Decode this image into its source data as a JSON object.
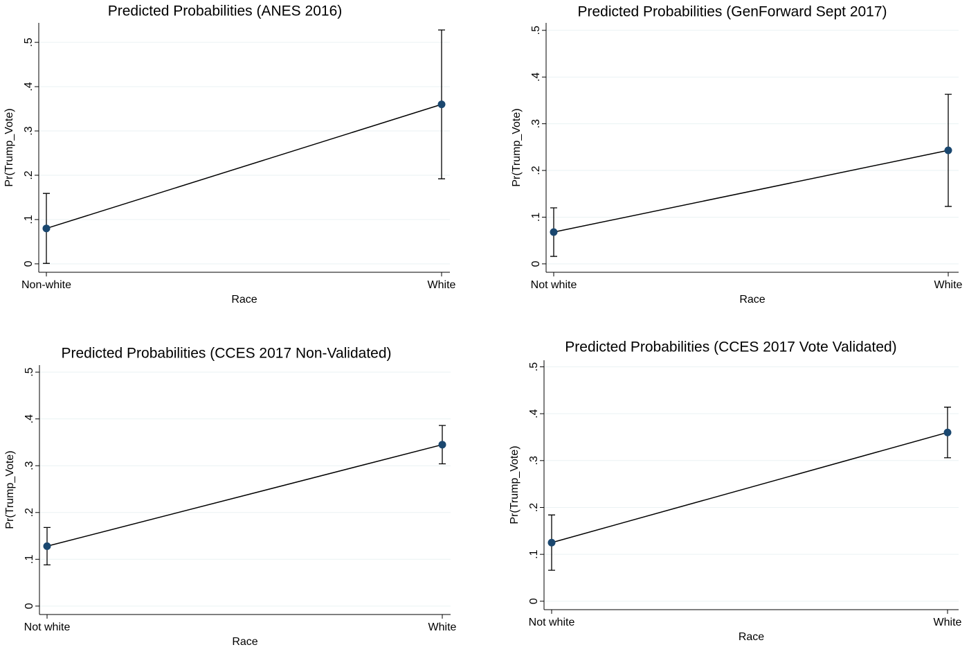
{
  "chart_data": [
    {
      "type": "line",
      "title": "Predicted Probabilities (ANES 2016)",
      "x_label": "Race",
      "y_label": "Pr(Trump_Vote)",
      "categories": [
        "Non-white",
        "White"
      ],
      "values": [
        0.08,
        0.36
      ],
      "errors": [
        0.079,
        0.168
      ],
      "color": "#1a476f",
      "line_color": "#000000",
      "grid": true,
      "ylim": [
        -0.019,
        0.544
      ],
      "yticks": [
        0,
        {
          "value": 0.1,
          "label": ".1"
        },
        {
          "value": 0.2,
          "label": ".2"
        },
        {
          "value": 0.3,
          "label": ".3"
        },
        {
          "value": 0.4,
          "label": ".4"
        },
        {
          "value": 0.5,
          "label": ".5"
        }
      ]
    },
    {
      "type": "line",
      "title": "Predicted Probabilities (GenForward Sept 2017)",
      "x_label": "Race",
      "y_label": "Pr(Trump_Vote)",
      "categories": [
        "Not white",
        "White"
      ],
      "values": [
        0.068,
        0.243
      ],
      "errors": [
        0.052,
        0.12
      ],
      "color": "#1a476f",
      "line_color": "#000000",
      "grid": true,
      "ylim": [
        -0.018,
        0.516
      ],
      "yticks": [
        0,
        {
          "value": 0.1,
          "label": ".1"
        },
        {
          "value": 0.2,
          "label": ".2"
        },
        {
          "value": 0.3,
          "label": ".3"
        },
        {
          "value": 0.4,
          "label": ".4"
        },
        {
          "value": 0.5,
          "label": ".5"
        }
      ]
    },
    {
      "type": "line",
      "title": "Predicted Probabilities (CCES 2017 Non-Validated)",
      "x_label": "Race",
      "y_label": "Pr(Trump_Vote)",
      "categories": [
        "Not white",
        "White"
      ],
      "values": [
        0.128,
        0.345
      ],
      "errors": [
        0.04,
        0.041
      ],
      "color": "#1a476f",
      "line_color": "#000000",
      "grid": true,
      "ylim": [
        -0.018,
        0.515
      ],
      "yticks": [
        0,
        {
          "value": 0.1,
          "label": ".1"
        },
        {
          "value": 0.2,
          "label": ".2"
        },
        {
          "value": 0.3,
          "label": ".3"
        },
        {
          "value": 0.4,
          "label": ".4"
        },
        {
          "value": 0.5,
          "label": ".5"
        }
      ]
    },
    {
      "type": "line",
      "title": "Predicted Probabilities (CCES 2017 Vote Validated)",
      "x_label": "Race",
      "y_label": "Pr(Trump_Vote)",
      "categories": [
        "Not white",
        "White"
      ],
      "values": [
        0.125,
        0.36
      ],
      "errors": [
        0.059,
        0.054
      ],
      "color": "#1a476f",
      "line_color": "#000000",
      "grid": true,
      "ylim": [
        -0.018,
        0.514
      ],
      "yticks": [
        0,
        {
          "value": 0.1,
          "label": ".1"
        },
        {
          "value": 0.2,
          "label": ".2"
        },
        {
          "value": 0.3,
          "label": ".3"
        },
        {
          "value": 0.4,
          "label": ".4"
        },
        {
          "value": 0.5,
          "label": ".5"
        }
      ]
    }
  ]
}
